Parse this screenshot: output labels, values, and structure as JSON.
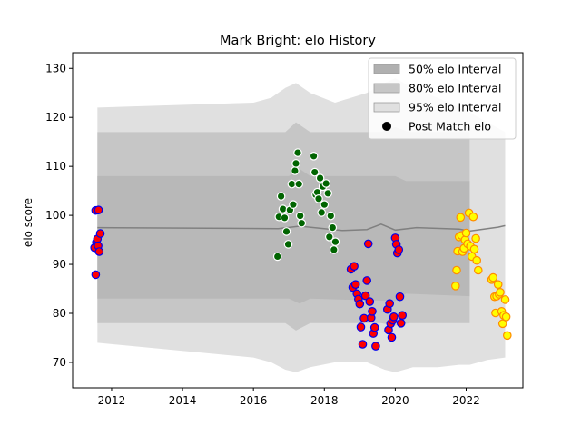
{
  "chart_data": {
    "type": "scatter",
    "title": "Mark Bright: elo History",
    "xlabel": "",
    "ylabel": "elo score",
    "xlim": [
      2010.9,
      2023.6
    ],
    "ylim": [
      64.8,
      133.2
    ],
    "xticks": [
      2012,
      2014,
      2016,
      2018,
      2020,
      2022
    ],
    "yticks": [
      70,
      80,
      90,
      100,
      110,
      120,
      130
    ],
    "grid": false,
    "legend_position": "top-right",
    "legend": [
      {
        "label": "50% elo Interval",
        "kind": "band",
        "color": "#b0b0b0"
      },
      {
        "label": "80% elo Interval",
        "kind": "band",
        "color": "#c6c6c6"
      },
      {
        "label": "95% elo Interval",
        "kind": "band",
        "color": "#e0e0e0"
      },
      {
        "label": "Post Match elo",
        "kind": "marker",
        "color": "#000000"
      }
    ],
    "bands": {
      "outer95": [
        {
          "x": 2011.6,
          "upper": 122,
          "lower": 74
        },
        {
          "x": 2016.0,
          "upper": 123,
          "lower": 71
        },
        {
          "x": 2016.5,
          "upper": 124,
          "lower": 70
        },
        {
          "x": 2016.9,
          "upper": 126,
          "lower": 68.5
        },
        {
          "x": 2017.2,
          "upper": 127,
          "lower": 68
        },
        {
          "x": 2017.6,
          "upper": 125,
          "lower": 69
        },
        {
          "x": 2018.3,
          "upper": 123,
          "lower": 70
        },
        {
          "x": 2019.2,
          "upper": 125,
          "lower": 70
        },
        {
          "x": 2019.7,
          "upper": 127,
          "lower": 68.5
        },
        {
          "x": 2020.0,
          "upper": 128,
          "lower": 68
        },
        {
          "x": 2020.5,
          "upper": 126,
          "lower": 69
        },
        {
          "x": 2021.2,
          "upper": 124,
          "lower": 69
        },
        {
          "x": 2021.8,
          "upper": 122,
          "lower": 69.5
        },
        {
          "x": 2022.1,
          "upper": 121,
          "lower": 69.5
        },
        {
          "x": 2022.6,
          "upper": 119,
          "lower": 70.5
        },
        {
          "x": 2023.1,
          "upper": 117,
          "lower": 71
        }
      ],
      "mid80": [
        {
          "x": 2011.6,
          "upper": 117,
          "lower": 78
        },
        {
          "x": 2016.9,
          "upper": 117,
          "lower": 78
        },
        {
          "x": 2017.2,
          "upper": 119,
          "lower": 76.5
        },
        {
          "x": 2017.6,
          "upper": 117,
          "lower": 78
        },
        {
          "x": 2019.6,
          "upper": 117,
          "lower": 78
        },
        {
          "x": 2020.0,
          "upper": 118,
          "lower": 77.5
        },
        {
          "x": 2020.4,
          "upper": 117,
          "lower": 78
        },
        {
          "x": 2022.1,
          "upper": 117,
          "lower": 78
        }
      ],
      "inner50": [
        {
          "x": 2011.6,
          "upper": 108,
          "lower": 83
        },
        {
          "x": 2017.0,
          "upper": 108,
          "lower": 83
        },
        {
          "x": 2017.3,
          "upper": 109.5,
          "lower": 82
        },
        {
          "x": 2017.6,
          "upper": 108,
          "lower": 83
        },
        {
          "x": 2020.0,
          "upper": 108,
          "lower": 82.5
        },
        {
          "x": 2020.3,
          "upper": 107,
          "lower": 84
        },
        {
          "x": 2022.1,
          "upper": 107,
          "lower": 83.5
        }
      ],
      "median": [
        {
          "x": 2011.6,
          "y": 97.5
        },
        {
          "x": 2016.7,
          "y": 97.3
        },
        {
          "x": 2017.3,
          "y": 97.8
        },
        {
          "x": 2018.5,
          "y": 96.9
        },
        {
          "x": 2019.2,
          "y": 97.1
        },
        {
          "x": 2019.6,
          "y": 98.2
        },
        {
          "x": 2020.0,
          "y": 97.0
        },
        {
          "x": 2020.6,
          "y": 97.5
        },
        {
          "x": 2021.8,
          "y": 97.2
        },
        {
          "x": 2022.1,
          "y": 96.8
        },
        {
          "x": 2022.9,
          "y": 97.6
        },
        {
          "x": 2023.1,
          "y": 97.9
        }
      ]
    },
    "series": [
      {
        "fill": "#ff0000",
        "edge": "#0000ee",
        "points": [
          [
            2011.55,
            101.0
          ],
          [
            2011.63,
            101.1
          ],
          [
            2011.52,
            93.4
          ],
          [
            2011.57,
            94.5
          ],
          [
            2011.6,
            95.2
          ],
          [
            2011.62,
            93.8
          ],
          [
            2011.65,
            92.6
          ],
          [
            2011.68,
            96.3
          ],
          [
            2011.55,
            87.9
          ]
        ]
      },
      {
        "fill": "#006400",
        "edge": "#ffffff",
        "points": [
          [
            2016.68,
            91.6
          ],
          [
            2016.72,
            99.7
          ],
          [
            2016.78,
            103.9
          ],
          [
            2016.83,
            101.3
          ],
          [
            2016.88,
            99.5
          ],
          [
            2016.93,
            96.7
          ],
          [
            2016.98,
            94.1
          ],
          [
            2017.03,
            101.1
          ],
          [
            2017.08,
            106.4
          ],
          [
            2017.12,
            102.2
          ],
          [
            2017.17,
            109.1
          ],
          [
            2017.2,
            110.6
          ],
          [
            2017.25,
            112.8
          ],
          [
            2017.28,
            106.4
          ],
          [
            2017.32,
            99.9
          ],
          [
            2017.36,
            98.4
          ],
          [
            2017.7,
            112.1
          ],
          [
            2017.73,
            108.8
          ],
          [
            2017.76,
            104.2
          ],
          [
            2017.8,
            104.7
          ],
          [
            2017.84,
            103.4
          ],
          [
            2017.88,
            107.6
          ],
          [
            2017.92,
            100.6
          ],
          [
            2017.96,
            105.9
          ],
          [
            2018.0,
            102.2
          ],
          [
            2018.05,
            106.5
          ],
          [
            2018.1,
            104.5
          ],
          [
            2018.14,
            95.6
          ],
          [
            2018.18,
            99.9
          ],
          [
            2018.23,
            97.5
          ],
          [
            2018.27,
            93.0
          ],
          [
            2018.31,
            94.6
          ]
        ]
      },
      {
        "fill": "#ff0000",
        "edge": "#0000ee",
        "points": [
          [
            2018.75,
            89.0
          ],
          [
            2018.8,
            85.3
          ],
          [
            2018.84,
            89.6
          ],
          [
            2018.88,
            85.9
          ],
          [
            2018.92,
            84.0
          ],
          [
            2018.96,
            82.9
          ],
          [
            2019.0,
            81.9
          ],
          [
            2019.03,
            77.2
          ],
          [
            2019.08,
            73.7
          ],
          [
            2019.12,
            79.0
          ],
          [
            2019.16,
            83.6
          ],
          [
            2019.2,
            86.7
          ],
          [
            2019.24,
            94.2
          ],
          [
            2019.28,
            82.4
          ],
          [
            2019.32,
            79.1
          ],
          [
            2019.35,
            80.4
          ],
          [
            2019.38,
            75.9
          ],
          [
            2019.42,
            77.1
          ],
          [
            2019.45,
            73.3
          ],
          [
            2019.78,
            80.8
          ],
          [
            2019.81,
            76.6
          ],
          [
            2019.84,
            82.0
          ],
          [
            2019.87,
            77.9
          ],
          [
            2019.9,
            75.1
          ],
          [
            2019.93,
            78.6
          ],
          [
            2019.96,
            79.3
          ],
          [
            2020.0,
            95.4
          ],
          [
            2020.03,
            94.1
          ],
          [
            2020.06,
            92.3
          ],
          [
            2020.1,
            93.0
          ],
          [
            2020.13,
            83.4
          ],
          [
            2020.16,
            78.0
          ],
          [
            2020.2,
            79.6
          ]
        ]
      },
      {
        "fill": "#ffff00",
        "edge": "#ff8c00",
        "points": [
          [
            2021.7,
            85.6
          ],
          [
            2021.73,
            88.8
          ],
          [
            2021.76,
            92.7
          ],
          [
            2021.8,
            95.6
          ],
          [
            2021.84,
            99.6
          ],
          [
            2021.87,
            95.9
          ],
          [
            2021.9,
            92.6
          ],
          [
            2021.94,
            93.3
          ],
          [
            2021.97,
            95.0
          ],
          [
            2022.0,
            96.4
          ],
          [
            2022.04,
            94.2
          ],
          [
            2022.08,
            100.5
          ],
          [
            2022.12,
            93.7
          ],
          [
            2022.16,
            91.6
          ],
          [
            2022.2,
            99.7
          ],
          [
            2022.23,
            93.1
          ],
          [
            2022.27,
            95.3
          ],
          [
            2022.3,
            90.8
          ],
          [
            2022.34,
            88.8
          ],
          [
            2022.72,
            86.9
          ],
          [
            2022.76,
            87.3
          ],
          [
            2022.8,
            83.4
          ],
          [
            2022.83,
            80.1
          ],
          [
            2022.86,
            83.5
          ],
          [
            2022.9,
            85.9
          ],
          [
            2022.93,
            83.9
          ],
          [
            2022.96,
            84.3
          ],
          [
            2023.0,
            80.4
          ],
          [
            2023.03,
            77.9
          ],
          [
            2023.06,
            79.6
          ],
          [
            2023.1,
            82.8
          ],
          [
            2023.13,
            79.3
          ],
          [
            2023.16,
            75.5
          ]
        ]
      }
    ]
  }
}
